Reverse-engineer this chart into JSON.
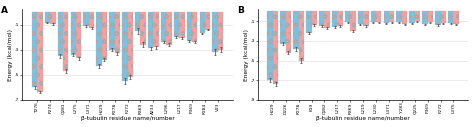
{
  "panel_A": {
    "labels": [
      "T276",
      "P274",
      "Q281",
      "L275",
      "L371",
      "H229",
      "R278",
      "F272",
      "R369",
      "A233",
      "L296",
      "L217",
      "P369",
      "R284",
      "V23"
    ],
    "blue_vals": [
      -6.0,
      -0.85,
      -3.5,
      -3.4,
      -1.1,
      -4.3,
      -3.0,
      -5.5,
      -1.5,
      -2.9,
      -2.4,
      -2.0,
      -2.3,
      -1.7,
      -3.2
    ],
    "red_vals": [
      -6.4,
      -0.95,
      -4.7,
      -3.7,
      -1.3,
      -3.8,
      -3.3,
      -5.2,
      -2.6,
      -2.8,
      -2.6,
      -2.1,
      -2.4,
      -1.4,
      -3.0
    ],
    "blue_err": [
      0.12,
      0.04,
      0.13,
      0.1,
      0.07,
      0.14,
      0.1,
      0.2,
      0.22,
      0.12,
      0.08,
      0.07,
      0.08,
      0.06,
      0.22
    ],
    "red_err": [
      0.09,
      0.05,
      0.16,
      0.13,
      0.08,
      0.11,
      0.13,
      0.17,
      0.18,
      0.11,
      0.1,
      0.08,
      0.09,
      0.07,
      0.18
    ],
    "ylabel": "Energy (kcal/mol)",
    "xlabel": "β-tubulin residue name/number",
    "ylim": [
      -7.0,
      0.2
    ],
    "yticks": [
      -7,
      -5,
      -3,
      -1
    ],
    "panel_label": "A"
  },
  "panel_B": {
    "labels": [
      "H229",
      "D226",
      "R278",
      "K19",
      "Q282",
      "L217",
      "R369",
      "L219",
      "L230",
      "L371",
      "Y283",
      "Q225",
      "P369",
      "F272",
      "L375"
    ],
    "blue_vals": [
      -7.0,
      -3.3,
      -3.8,
      -2.2,
      -1.5,
      -1.6,
      -1.1,
      -1.3,
      -1.1,
      -1.2,
      -1.1,
      -1.2,
      -1.3,
      -1.4,
      -1.2
    ],
    "red_vals": [
      -7.4,
      -4.2,
      -5.0,
      -1.4,
      -1.7,
      -1.5,
      -2.0,
      -1.5,
      -1.1,
      -1.1,
      -1.3,
      -1.0,
      -1.1,
      -1.2,
      -1.3
    ],
    "blue_err": [
      0.22,
      0.14,
      0.2,
      0.12,
      0.08,
      0.07,
      0.07,
      0.07,
      0.06,
      0.07,
      0.06,
      0.06,
      0.07,
      0.08,
      0.07
    ],
    "red_err": [
      0.18,
      0.18,
      0.25,
      0.08,
      0.09,
      0.07,
      0.09,
      0.08,
      0.06,
      0.06,
      0.07,
      0.05,
      0.06,
      0.07,
      0.06
    ],
    "ylabel": "Energy (kcal/mol)",
    "xlabel": "β-tubulin residue name/number",
    "ylim": [
      -9.0,
      0.2
    ],
    "yticks": [
      -9,
      -7,
      -5,
      -3,
      -1
    ],
    "panel_label": "B"
  },
  "blue_color": "#7fbfdf",
  "red_color": "#f4a0a0",
  "blue_hatch": "oo",
  "red_hatch": "oo",
  "bar_width": 0.42,
  "figsize": [
    4.74,
    1.27
  ],
  "dpi": 100,
  "tick_fontsize": 3.2,
  "label_fontsize": 4.2,
  "panel_label_fontsize": 6.5,
  "grid_color": "#cccccc",
  "grid_alpha": 0.7
}
